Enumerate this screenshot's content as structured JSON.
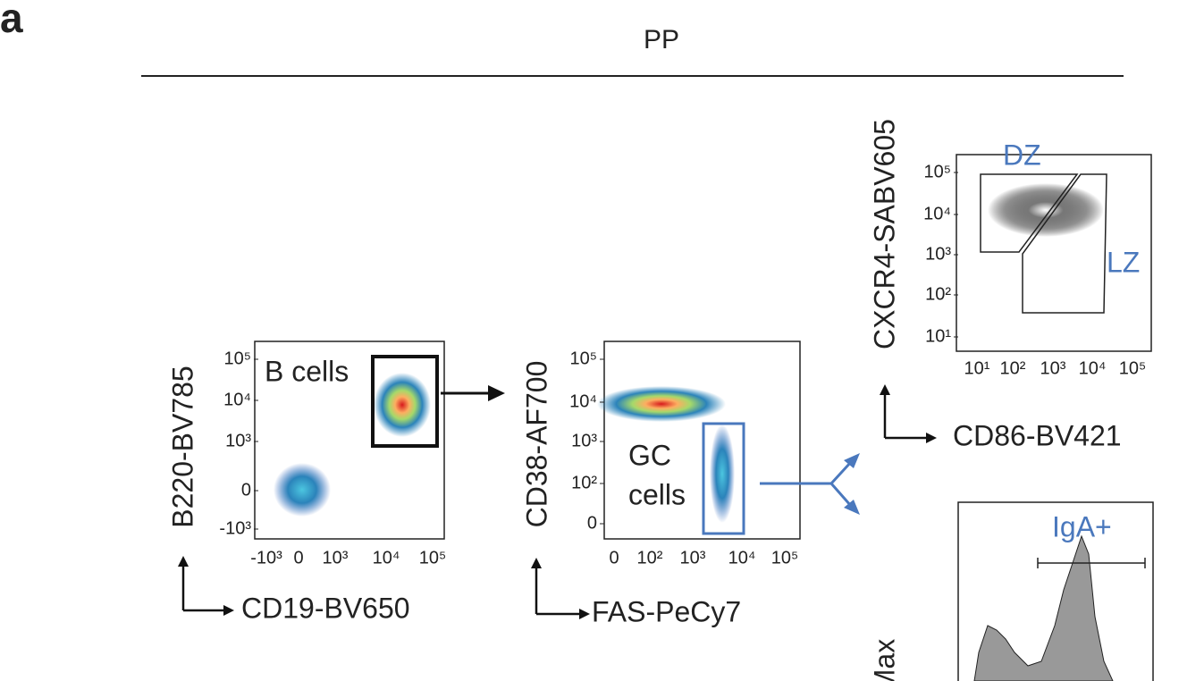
{
  "panel_label": "a",
  "header": "PP",
  "plots": [
    {
      "y_label": "B220-BV785",
      "x_label": "CD19-BV650",
      "yticks": [
        "10⁵",
        "10⁴",
        "10³",
        "0",
        "-10³"
      ],
      "xticks": [
        "-10³",
        "0",
        "10³",
        "10⁴",
        "10⁵"
      ],
      "gates": [
        "B cells"
      ]
    },
    {
      "y_label": "CD38-AF700",
      "x_label": "FAS-PeCy7",
      "yticks": [
        "10⁵",
        "10⁴",
        "10³",
        "10²",
        "0"
      ],
      "xticks": [
        "0",
        "10²",
        "10³",
        "10⁴",
        "10⁵"
      ],
      "gates": [
        "GC",
        "cells"
      ]
    },
    {
      "y_label": "CXCR4-SABV605",
      "x_label": "CD86-BV421",
      "yticks": [
        "10⁵",
        "10⁴",
        "10³",
        "10²",
        "10¹"
      ],
      "xticks": [
        "10¹",
        "10²",
        "10³",
        "10⁴",
        "10⁵"
      ],
      "gates": [
        "DZ",
        "LZ"
      ]
    },
    {
      "y_label": "Max",
      "gates": [
        "IgA+"
      ]
    }
  ]
}
